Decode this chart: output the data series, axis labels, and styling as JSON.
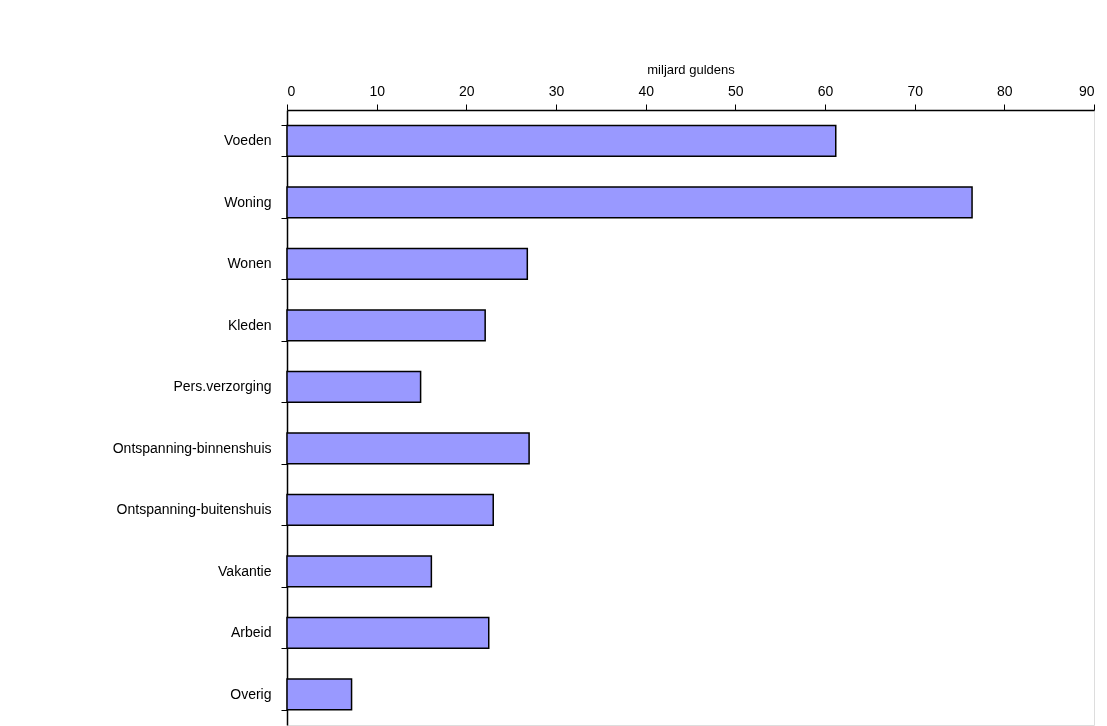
{
  "chart_data": {
    "type": "bar",
    "orientation": "horizontal",
    "xlabel": "miljard guldens",
    "categories": [
      "Voeden",
      "Woning",
      "Wonen",
      "Kleden",
      "Pers.verzorging",
      "Ontspanning-binnenshuis",
      "Ontspanning-buitenshuis",
      "Vakantie",
      "Arbeid",
      "Overig"
    ],
    "values": [
      61.2,
      76.4,
      26.8,
      22.1,
      14.9,
      27.0,
      23.0,
      16.1,
      22.5,
      7.2
    ],
    "color": "#9999ff",
    "xlim": [
      0,
      90
    ],
    "xticks": [
      0,
      10,
      20,
      30,
      40,
      50,
      60,
      70,
      80,
      90
    ],
    "grid": false
  }
}
